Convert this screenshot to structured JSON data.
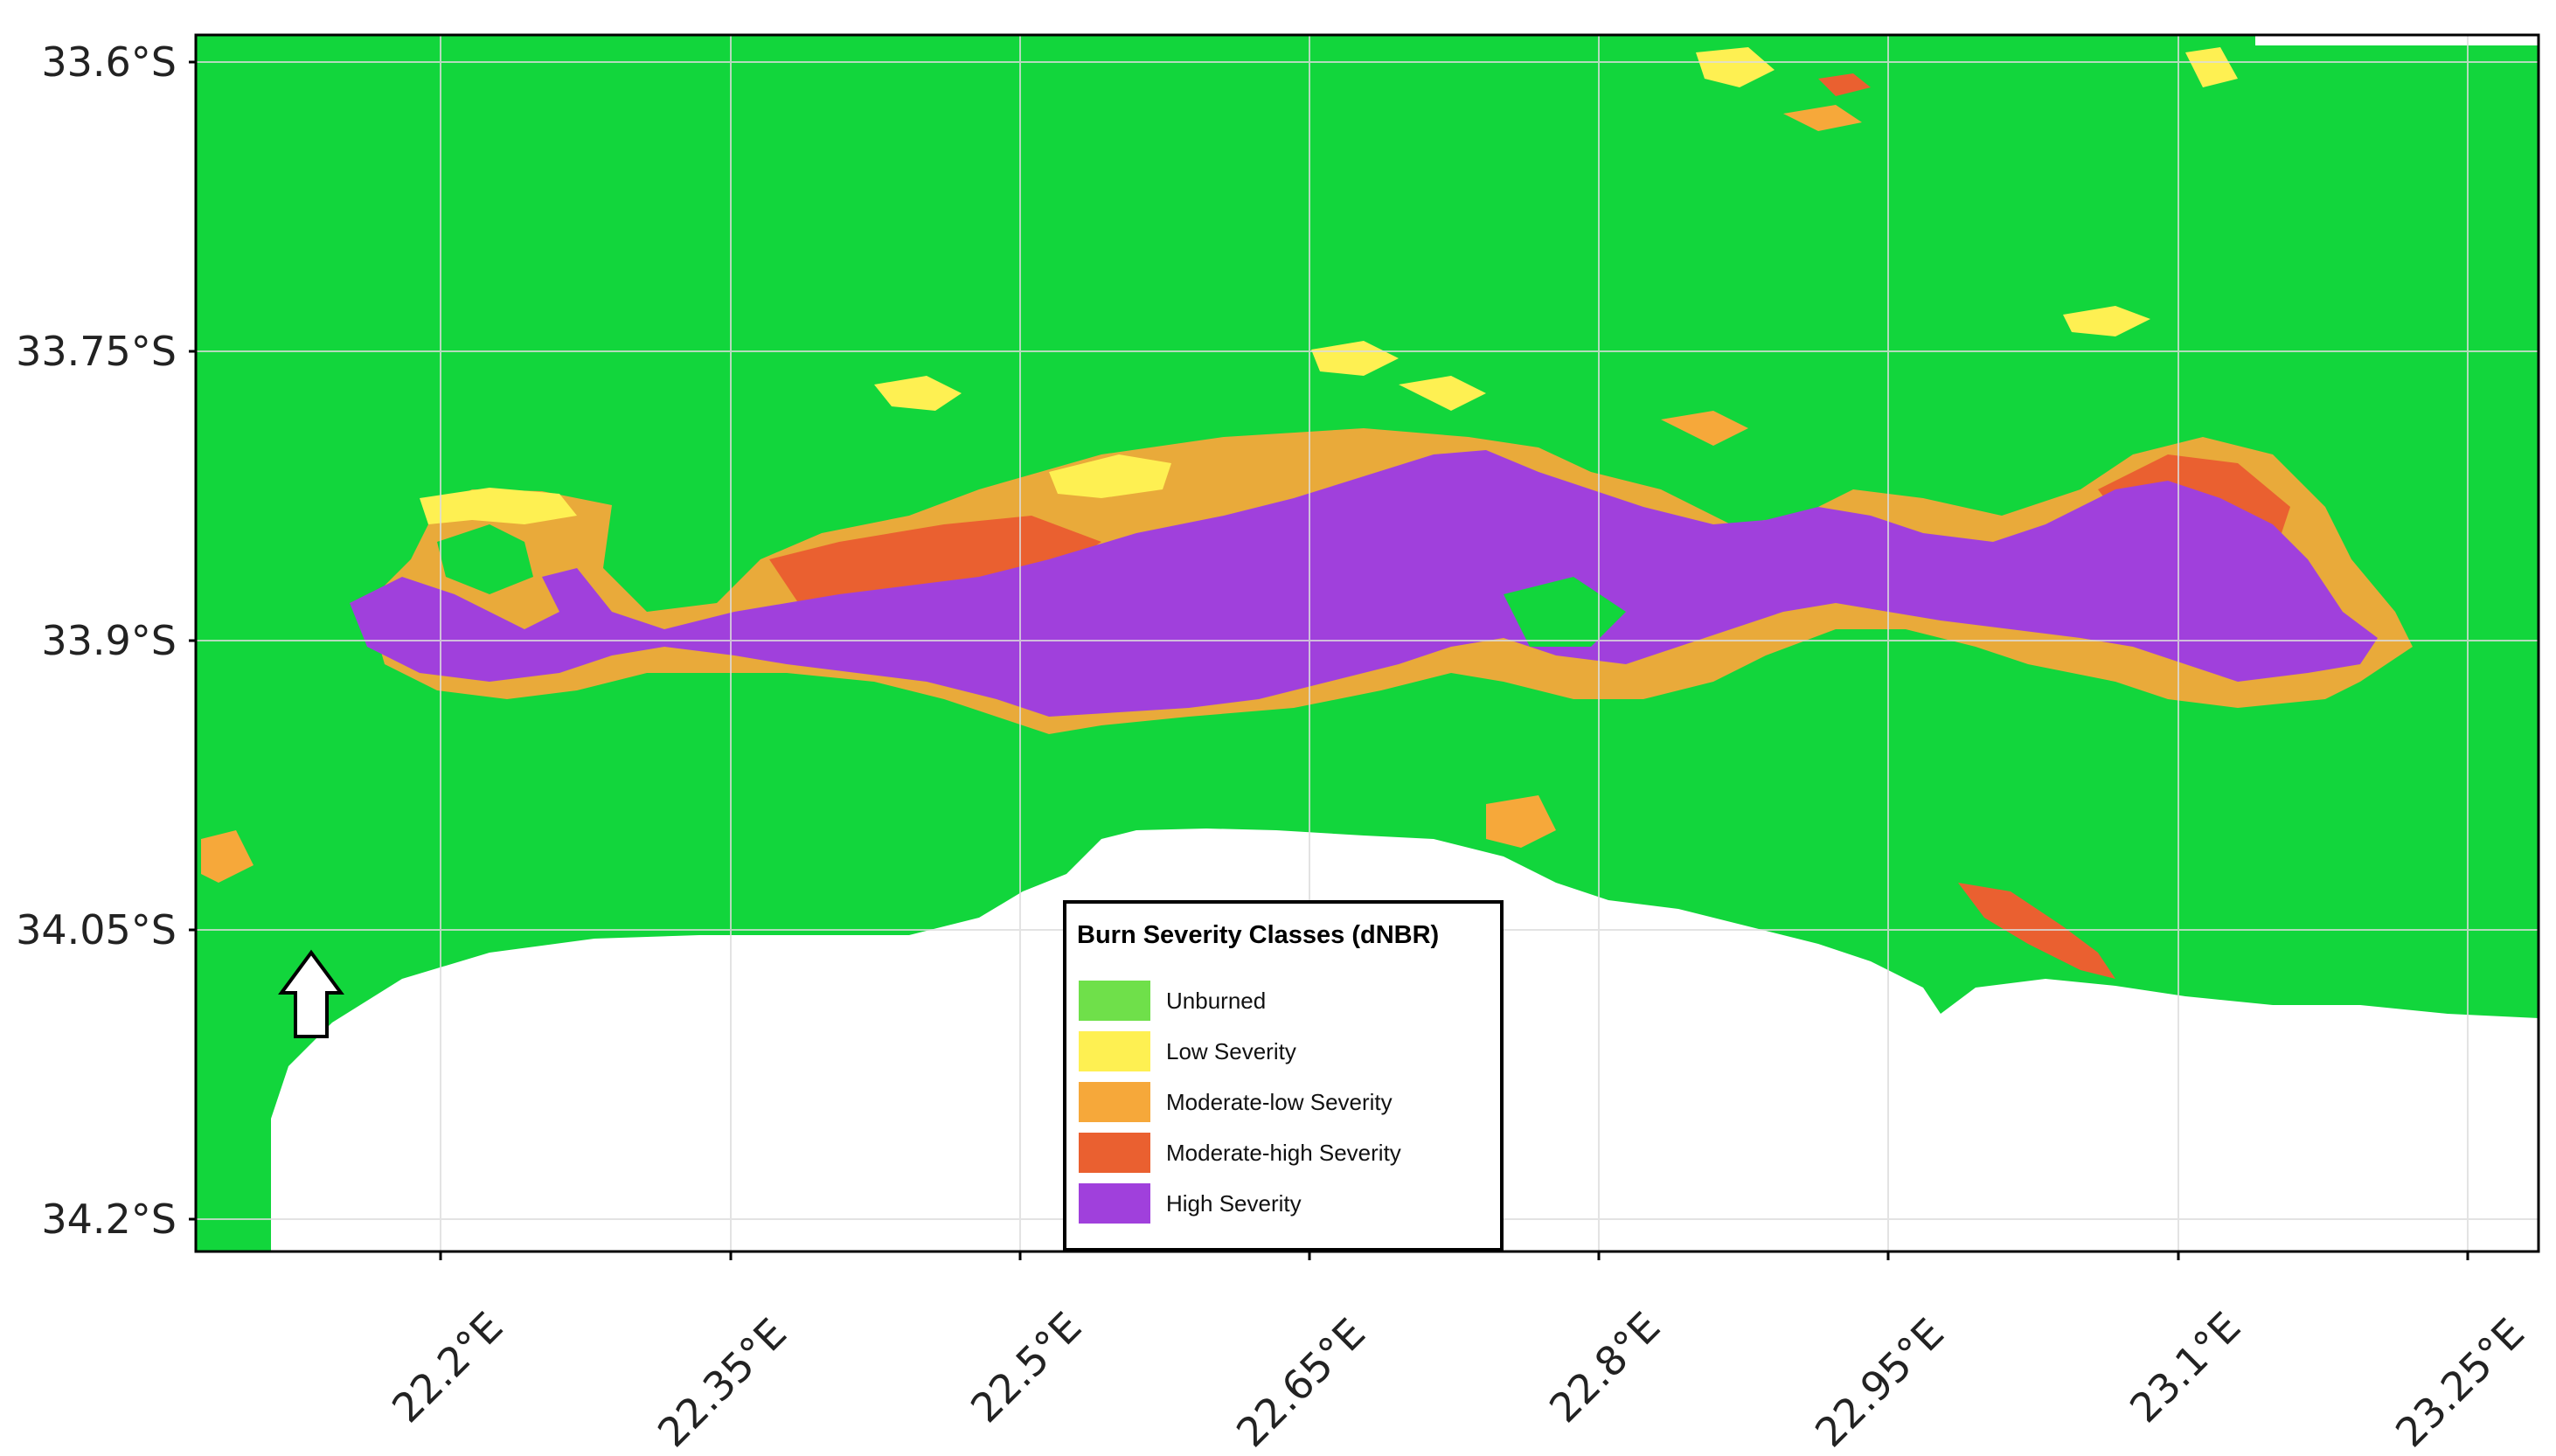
{
  "map": {
    "lat_labels": [
      "33.6°S",
      "33.75°S",
      "33.9°S",
      "34.05°S",
      "34.2°S"
    ],
    "lon_labels": [
      "22.2°E",
      "22.35°E",
      "22.5°E",
      "22.65°E",
      "22.8°E",
      "22.95°E",
      "23.1°E",
      "23.25°E"
    ],
    "colors": {
      "land": "#12d63c",
      "ocean": "#ffffff",
      "frame": "#000000",
      "grid": "#dddddd"
    },
    "north_arrow_icon": "north-arrow-icon"
  },
  "legend": {
    "title": "Burn Severity Classes (dNBR)",
    "items": [
      {
        "label": "Unburned",
        "color": "#6fe04a"
      },
      {
        "label": "Low Severity",
        "color": "#fef052"
      },
      {
        "label": "Moderate-low Severity",
        "color": "#f6a83a"
      },
      {
        "label": "Moderate-high Severity",
        "color": "#ea6030"
      },
      {
        "label": "High Severity",
        "color": "#a040dc"
      }
    ]
  }
}
